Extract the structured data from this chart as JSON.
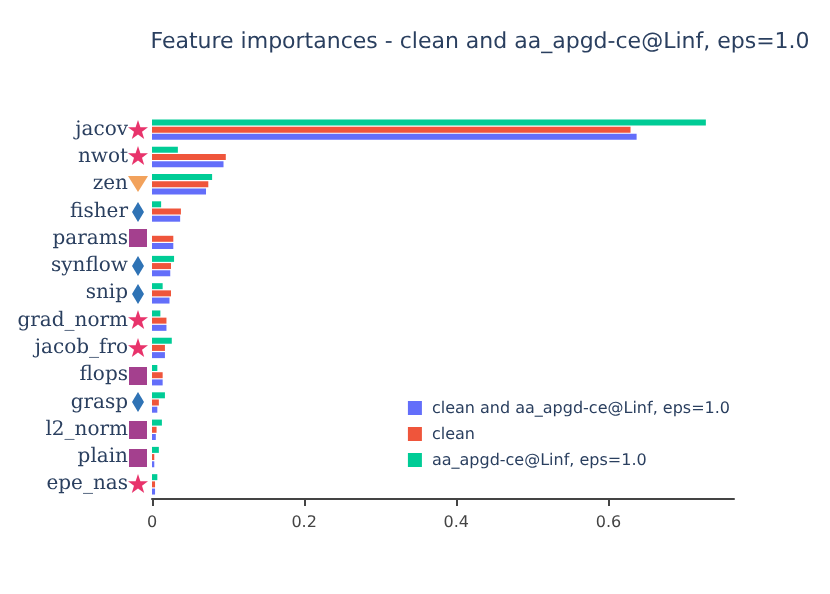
{
  "chart_data": {
    "type": "bar",
    "orientation": "horizontal",
    "title": "Feature importances - clean and aa_apgd-ce@Linf, eps=1.0",
    "categories": [
      "jacov",
      "nwot",
      "zen",
      "fisher",
      "params",
      "synflow",
      "snip",
      "grad_norm",
      "jacob_fro",
      "flops",
      "grasp",
      "l2_norm",
      "plain",
      "epe_nas"
    ],
    "series": [
      {
        "name": "clean and aa_apgd-ce@Linf, eps=1.0",
        "color": "#636efa",
        "values": [
          0.637,
          0.094,
          0.071,
          0.037,
          0.028,
          0.024,
          0.023,
          0.019,
          0.017,
          0.014,
          0.007,
          0.005,
          0.003,
          0.004
        ]
      },
      {
        "name": "clean",
        "color": "#ef553b",
        "values": [
          0.629,
          0.097,
          0.074,
          0.038,
          0.028,
          0.025,
          0.025,
          0.019,
          0.017,
          0.014,
          0.009,
          0.006,
          0.003,
          0.004
        ]
      },
      {
        "name": "aa_apgd-ce@Linf, eps=1.0",
        "color": "#00cc96",
        "values": [
          0.728,
          0.034,
          0.079,
          0.012,
          null,
          0.029,
          0.014,
          0.011,
          0.026,
          0.007,
          0.017,
          0.013,
          0.009,
          0.007
        ]
      }
    ],
    "xlim": [
      0,
      0.765
    ],
    "xticks": [
      0,
      0.2,
      0.4,
      0.6
    ],
    "grid": false,
    "legend": "bottom right"
  }
}
